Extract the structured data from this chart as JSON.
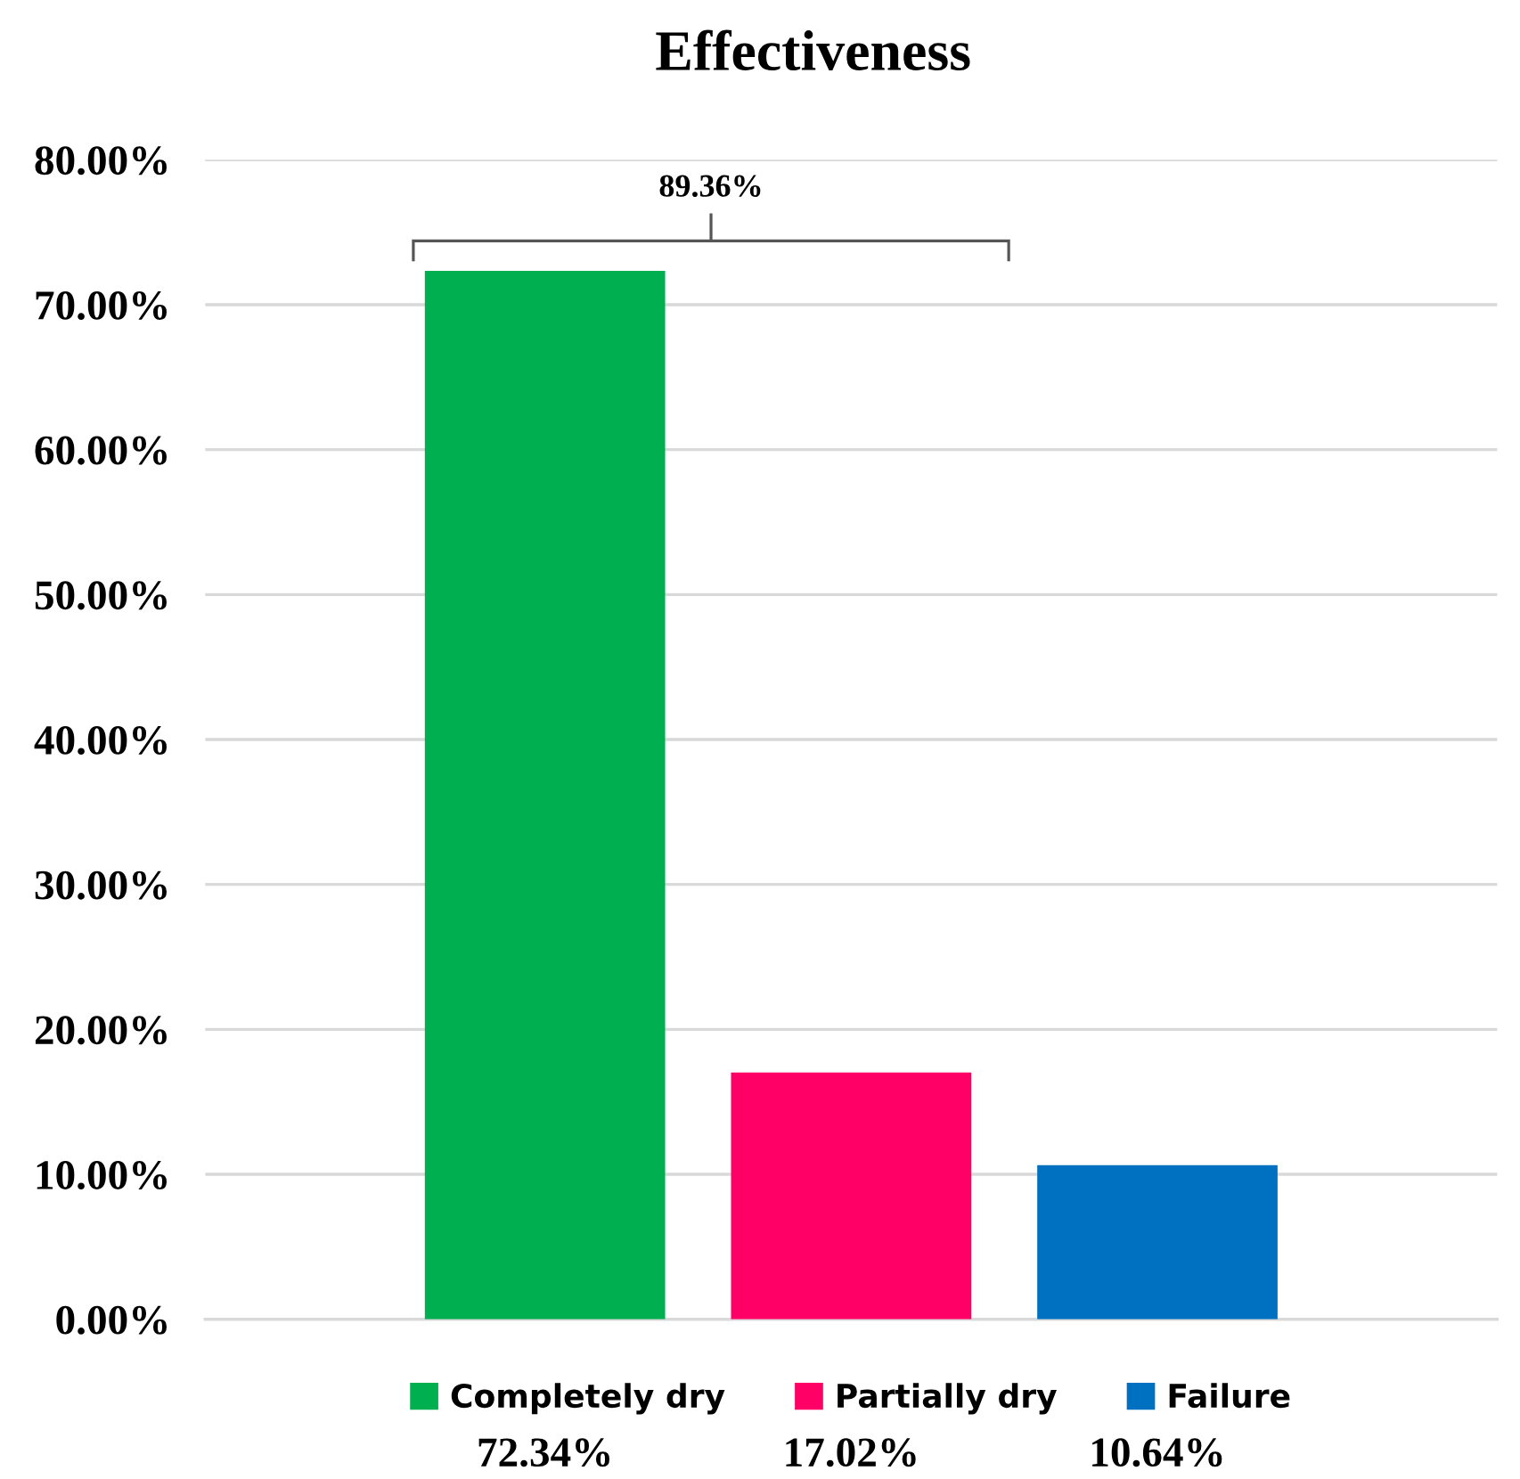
{
  "chart_data": {
    "type": "bar",
    "title": "Effectiveness",
    "categories": [
      null
    ],
    "series": [
      {
        "name": "Completely dry",
        "color": "#00b050",
        "values": [
          72.34
        ]
      },
      {
        "name": "Partially dry",
        "color": "#ff0066",
        "values": [
          17.02
        ]
      },
      {
        "name": "Failure",
        "color": "#0070c0",
        "values": [
          10.64
        ]
      }
    ],
    "ylim": [
      0,
      80
    ],
    "yticks": [
      {
        "value": 0,
        "label": "0.00%"
      },
      {
        "value": 10,
        "label": "10.00%"
      },
      {
        "value": 20,
        "label": "20.00%"
      },
      {
        "value": 30,
        "label": "30.00%"
      },
      {
        "value": 40,
        "label": "40.00%"
      },
      {
        "value": 50,
        "label": "50.00%"
      },
      {
        "value": 60,
        "label": "60.00%"
      },
      {
        "value": 70,
        "label": "70.00%"
      },
      {
        "value": 80,
        "label": "80.00%"
      }
    ],
    "value_labels": [
      "72.34%",
      "17.02%",
      "10.64%"
    ],
    "annotations": [
      "89.36%"
    ],
    "grid": "y",
    "legend": "bottom"
  }
}
